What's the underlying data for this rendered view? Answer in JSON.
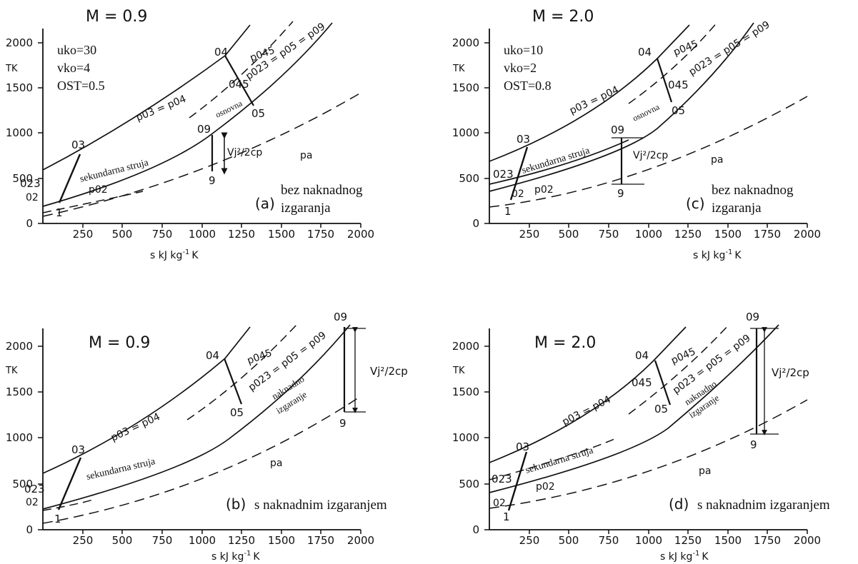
{
  "axes": {
    "x_label": "s kJ kg",
    "x_label_sup": "-1",
    "x_label_end": "K",
    "y_label": "TK",
    "x_ticks": [
      "250",
      "500",
      "750",
      "1000",
      "1250",
      "1500",
      "1750",
      "2000"
    ],
    "y_ticks": [
      "0",
      "500",
      "1000",
      "1500",
      "2000"
    ]
  },
  "panels": [
    {
      "id": "a",
      "mach": "M = 0.9",
      "params": [
        "uko=30",
        "vko=4",
        "OST=0.5"
      ],
      "caption_letter": "(a)",
      "caption_lines": [
        "bez naknadnog",
        "izgaranja"
      ],
      "point_labels": {
        "p1": "1",
        "p02": "02",
        "p023": "023",
        "p03": "03",
        "p04": "04",
        "p045": "045",
        "p05": "05",
        "p09": "09",
        "p9": "9"
      },
      "curve_labels": {
        "p03": "p03 = p04",
        "p45": "p045",
        "p023": "p023 = p05 = p09",
        "p02": "p02",
        "pa": "pa"
      },
      "stream_labels": {
        "secondary": "sekundarna struja",
        "core": "osnovna"
      },
      "vj": "Vj²/2cp"
    },
    {
      "id": "c",
      "mach": "M = 2.0",
      "params": [
        "uko=10",
        "vko=2",
        "OST=0.8"
      ],
      "caption_letter": "(c)",
      "caption_lines": [
        "bez naknadnog",
        "izgaranja"
      ],
      "point_labels": {
        "p1": "1",
        "p02": "02",
        "p023": "023",
        "p03": "03",
        "p04": "04",
        "p045": "045",
        "p05": "05",
        "p09": "09",
        "p9": "9"
      },
      "curve_labels": {
        "p03": "p03 = p04",
        "p45": "p045",
        "p023": "p023 = p05 = p09",
        "p02": "p02",
        "pa": "pa"
      },
      "stream_labels": {
        "secondary": "sekundarna struja",
        "core": "osnovna"
      },
      "vj": "Vj²/2cp"
    },
    {
      "id": "b",
      "mach": "M = 0.9",
      "caption_letter": "(b)",
      "caption_lines": [
        "s naknadnim izgaranjem"
      ],
      "point_labels": {
        "p1": "1",
        "p02": "02",
        "p023": "023",
        "p03": "03",
        "p04": "04",
        "p05": "05",
        "p09": "09",
        "p9": "9"
      },
      "curve_labels": {
        "p03": "p03 = p04",
        "p45": "p045",
        "p023": "p023 = p05 = p09",
        "pa": "pa"
      },
      "stream_labels": {
        "secondary": "sekundarna struja",
        "after1": "naknadno",
        "after2": "izgaranje"
      },
      "vj": "Vj²/2cp"
    },
    {
      "id": "d",
      "mach": "M = 2.0",
      "caption_letter": "(d)",
      "caption_lines": [
        "s naknadnim izgaranjem"
      ],
      "point_labels": {
        "p1": "1",
        "p02": "02",
        "p023": "023",
        "p03": "03",
        "p04": "04",
        "p045": "045",
        "p05": "05",
        "p09": "09",
        "p9": "9"
      },
      "curve_labels": {
        "p03": "p03 = p04",
        "p45": "p045",
        "p023": "p023 = p05 = p09",
        "p02": "p02",
        "pa": "pa"
      },
      "stream_labels": {
        "secondary": "sekundarna struja",
        "after1": "naknadno",
        "after2": "izgaranje"
      },
      "vj": "Vj²/2cp"
    }
  ]
}
